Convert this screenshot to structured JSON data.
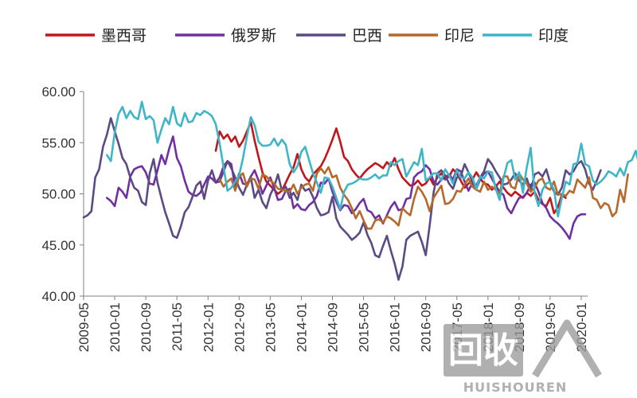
{
  "chart_data": {
    "type": "line",
    "title": "",
    "xlabel": "",
    "ylabel": "",
    "ylim": [
      40,
      60
    ],
    "y_ticks": [
      "40.00",
      "45.00",
      "50.00",
      "55.00",
      "60.00"
    ],
    "x_ticks": [
      "2009-05",
      "2010-01",
      "2010-09",
      "2011-05",
      "2012-01",
      "2012-09",
      "2013-05",
      "2014-01",
      "2014-09",
      "2015-05",
      "2016-01",
      "2016-09",
      "2017-05",
      "2018-01",
      "2018-09",
      "2019-05",
      "2020-01"
    ],
    "x_start": "2009-05",
    "grid": false,
    "legend_position": "top",
    "series": [
      {
        "name": "墨西哥",
        "color": "#c0161c",
        "start": "2012-03",
        "values": [
          54.2,
          56.1,
          55.4,
          55.8,
          55.1,
          55.6,
          54.6,
          55.2,
          56.1,
          57.0,
          55.2,
          53.6,
          52.1,
          51.2,
          50.8,
          50.4,
          50.0,
          50.3,
          51.1,
          51.9,
          52.6,
          53.9,
          52.4,
          51.6,
          51.2,
          51.9,
          52.3,
          52.7,
          53.4,
          54.3,
          55.3,
          56.4,
          55.1,
          53.6,
          53.2,
          52.4,
          51.9,
          51.5,
          52.0,
          52.4,
          52.7,
          53.0,
          52.8,
          52.5,
          53.1,
          52.7,
          53.5,
          52.4,
          51.6,
          51.2,
          50.8,
          50.9,
          51.3,
          50.8,
          51.0,
          51.6,
          50.9,
          51.6,
          52.0,
          51.4,
          51.7,
          52.4,
          52.0,
          51.3,
          50.6,
          51.0,
          51.4,
          52.1,
          51.5,
          51.0,
          50.9,
          50.4,
          50.7,
          51.2,
          50.6,
          50.1,
          49.8,
          50.2,
          49.9,
          49.6,
          50.1,
          49.8,
          50.2,
          49.4,
          49.0,
          48.8,
          49.6,
          48.1,
          48.7,
          49.9,
          49.6
        ]
      },
      {
        "name": "俄罗斯",
        "color": "#7030a0",
        "start": "2009-11",
        "values": [
          49.6,
          49.3,
          48.8,
          50.6,
          50.2,
          49.6,
          51.7,
          52.4,
          52.6,
          52.7,
          52.1,
          51.0,
          50.9,
          52.3,
          53.8,
          52.9,
          54.4,
          55.6,
          53.5,
          52.7,
          51.3,
          50.2,
          49.9,
          49.8,
          50.1,
          50.9,
          51.7,
          51.5,
          51.1,
          51.6,
          52.7,
          53.2,
          52.9,
          50.6,
          52.0,
          51.0,
          50.9,
          51.7,
          52.3,
          51.3,
          50.0,
          50.8,
          51.6,
          50.6,
          49.4,
          49.5,
          50.3,
          50.5,
          48.6,
          49.0,
          48.5,
          48.4,
          48.9,
          49.2,
          49.8,
          51.1,
          51.0,
          51.5,
          50.2,
          49.2,
          48.4,
          48.9,
          48.8,
          48.1,
          48.5,
          49.1,
          49.5,
          48.4,
          48.2,
          47.6,
          47.9,
          47.1,
          47.9,
          48.7,
          49.2,
          48.4,
          48.5,
          49.5,
          49.6,
          51.6,
          52.0,
          52.2,
          52.8,
          52.4,
          51.2,
          50.9,
          51.4,
          51.6,
          51.9,
          51.4,
          52.4,
          52.2,
          51.2,
          50.3,
          51.1,
          50.5,
          51.4,
          52.0,
          52.2,
          51.5,
          50.8,
          50.2,
          49.9,
          48.6,
          48.1,
          48.9,
          49.6,
          49.7,
          50.1,
          50.9,
          51.1,
          50.2,
          49.1,
          48.6,
          47.8,
          47.4,
          47.1,
          46.7,
          46.2,
          45.6,
          47.1,
          47.8,
          48.0,
          48.0
        ]
      },
      {
        "name": "巴西",
        "color": "#5b4a84",
        "start": "2009-05",
        "values": [
          47.7,
          47.9,
          48.3,
          51.6,
          52.4,
          54.6,
          55.8,
          57.4,
          56.1,
          54.9,
          53.5,
          52.9,
          51.6,
          50.6,
          50.3,
          49.2,
          48.9,
          52.0,
          53.4,
          51.1,
          49.6,
          48.2,
          47.1,
          45.9,
          45.7,
          46.8,
          48.2,
          48.7,
          49.7,
          50.8,
          51.2,
          49.5,
          51.3,
          52.3,
          51.1,
          51.2,
          52.2,
          53.2,
          52.5,
          51.6,
          50.6,
          49.9,
          50.9,
          51.6,
          49.6,
          50.4,
          49.2,
          48.6,
          49.9,
          50.7,
          51.9,
          50.3,
          50.7,
          49.6,
          50.1,
          49.4,
          50.9,
          50.3,
          50.5,
          49.7,
          48.6,
          47.9,
          48.0,
          48.2,
          49.7,
          47.6,
          46.8,
          46.4,
          46.0,
          45.5,
          45.8,
          46.2,
          47.2,
          46.0,
          45.2,
          44.0,
          43.8,
          44.9,
          45.9,
          44.5,
          43.2,
          41.6,
          42.9,
          45.5,
          45.9,
          46.1,
          46.3,
          45.3,
          44.0,
          46.9,
          50.1,
          52.0,
          52.3,
          51.8,
          51.0,
          50.5,
          51.6,
          51.7,
          52.9,
          52.1,
          51.2,
          50.8,
          51.6,
          52.2,
          53.4,
          52.9,
          52.2,
          51.6,
          50.9,
          51.0,
          51.4,
          52.0,
          51.3,
          50.9,
          51.5,
          50.3,
          51.9,
          52.1,
          51.7,
          52.4,
          51.1,
          50.2,
          49.9,
          50.6,
          52.3,
          51.9,
          52.2,
          52.9,
          53.2,
          52.4,
          51.0,
          50.4,
          51.3,
          52.3
        ]
      },
      {
        "name": "印尼",
        "color": "#b5692a",
        "start": "2012-04",
        "values": [
          51.4,
          50.7,
          51.2,
          51.5,
          50.3,
          51.7,
          52.0,
          50.7,
          51.5,
          51.4,
          50.5,
          51.9,
          51.7,
          51.3,
          51.0,
          50.5,
          50.4,
          50.3,
          50.2,
          50.9,
          50.0,
          50.6,
          50.9,
          51.0,
          50.3,
          52.0,
          52.5,
          52.0,
          52.6,
          51.6,
          51.8,
          50.6,
          49.9,
          49.4,
          48.6,
          47.6,
          48.3,
          47.4,
          46.6,
          46.6,
          47.4,
          47.5,
          47.2,
          47.8,
          47.6,
          47.3,
          46.9,
          48.6,
          48.2,
          47.9,
          49.5,
          50.7,
          50.2,
          49.5,
          48.3,
          49.6,
          50.2,
          50.8,
          49.0,
          49.1,
          49.5,
          50.3,
          50.2,
          50.9,
          51.5,
          50.7,
          50.4,
          50.2,
          51.2,
          50.4,
          50.7,
          50.4,
          50.0,
          51.7,
          51.7,
          50.7,
          50.5,
          52.0,
          51.4,
          51.0,
          50.2,
          50.6,
          51.3,
          51.5,
          50.6,
          50.4,
          51.2,
          49.9,
          50.0,
          49.8,
          50.3,
          50.1,
          51.4,
          51.0,
          50.6,
          51.6,
          49.6,
          49.4,
          48.6,
          49.1,
          48.9,
          47.8,
          48.2,
          50.4,
          49.2,
          51.9
        ]
      },
      {
        "name": "印度",
        "color": "#3fb6c7",
        "start": "2009-11",
        "values": [
          53.8,
          53.2,
          56.0,
          57.8,
          58.5,
          57.4,
          58.1,
          57.5,
          57.3,
          59.0,
          57.3,
          57.6,
          57.2,
          55.0,
          56.3,
          57.4,
          56.8,
          58.5,
          56.9,
          56.6,
          57.9,
          57.0,
          57.1,
          57.9,
          57.7,
          58.1,
          57.9,
          57.6,
          56.8,
          54.9,
          52.6,
          50.3,
          50.6,
          51.2,
          51.8,
          53.5,
          55.6,
          57.5,
          56.7,
          55.1,
          54.7,
          54.7,
          54.8,
          55.4,
          54.7,
          55.3,
          54.8,
          52.9,
          52.1,
          52.7,
          54.1,
          54.6,
          53.3,
          52.0,
          51.1,
          50.1,
          51.6,
          51.5,
          50.7,
          49.6,
          48.5,
          50.2,
          50.9,
          51.0,
          51.2,
          51.5,
          51.4,
          51.4,
          51.6,
          51.9,
          51.5,
          51.8,
          51.8,
          53.1,
          52.8,
          53.2,
          53.4,
          51.7,
          52.4,
          53.1,
          52.8,
          54.4,
          51.3,
          51.6,
          52.0,
          52.0,
          51.3,
          52.4,
          51.8,
          51.0,
          52.3,
          51.6,
          51.5,
          52.1,
          51.6,
          50.5,
          51.7,
          51.5,
          52.2,
          52.1,
          50.5,
          49.4,
          51.5,
          53.0,
          53.3,
          51.4,
          52.1,
          50.1,
          52.6,
          54.5,
          50.1,
          48.8,
          50.4,
          51.0,
          51.2,
          50.4,
          47.8,
          49.6,
          51.2,
          50.9,
          52.9,
          53.0,
          54.9,
          52.9,
          52.7,
          51.3,
          50.9,
          51.2,
          51.6,
          52.2,
          52.0,
          51.7,
          52.5,
          51.8,
          53.1,
          53.3,
          54.2,
          52.7,
          51.9,
          52.1,
          52.6,
          52.7,
          51.8,
          52.1,
          53.1,
          51.4,
          50.6,
          51.7,
          51.2,
          51.9,
          55.3,
          54.4
        ]
      }
    ]
  },
  "watermark": {
    "logo_text": "回收",
    "brand_text": "HUISHOUREN"
  }
}
